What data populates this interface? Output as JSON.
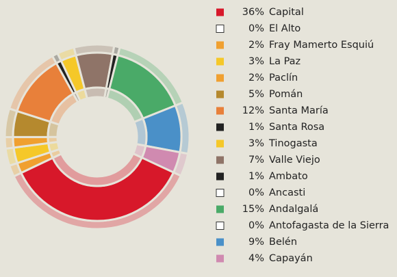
{
  "chart_data": {
    "type": "donut",
    "categories": [
      "Capital",
      "El Alto",
      "Fray Mamerto Esquiú",
      "La Paz",
      "Paclín",
      "Pomán",
      "Santa María",
      "Santa Rosa",
      "Tinogasta",
      "Valle Viejo",
      "Ambato",
      "Ancasti",
      "Andalgalá",
      "Antofagasta de la Sierra",
      "Belén",
      "Capayán"
    ],
    "values": [
      36,
      0,
      2,
      3,
      2,
      5,
      12,
      1,
      3,
      7,
      1,
      0,
      15,
      0,
      9,
      4
    ],
    "value_labels": [
      "36%",
      "0%",
      "2%",
      "3%",
      "2%",
      "5%",
      "12%",
      "1%",
      "3%",
      "7%",
      "1%",
      "0%",
      "15%",
      "0%",
      "9%",
      "4%"
    ],
    "colors": [
      "#d7182a",
      "#ffffff",
      "#f0a030",
      "#f5c829",
      "#f0a030",
      "#b5892e",
      "#e8803a",
      "#222222",
      "#f5c829",
      "#8f7468",
      "#222222",
      "#ffffff",
      "#4aaa68",
      "#ffffff",
      "#4a90c8",
      "#d08ab0"
    ],
    "legend": "right"
  }
}
